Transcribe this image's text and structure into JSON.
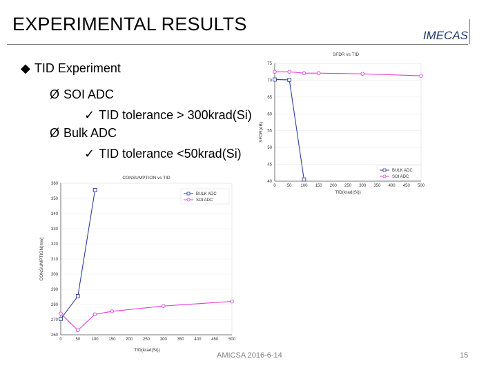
{
  "slide": {
    "title": "EXPERIMENTAL RESULTS",
    "brand": "IMECAS",
    "footer": "AMICSA 2016-6-14",
    "page": "15",
    "bullets": [
      {
        "level": 1,
        "marker": "◆",
        "text": "TID Experiment"
      },
      {
        "level": 2,
        "marker": "Ø",
        "text": "SOI ADC"
      },
      {
        "level": 3,
        "marker": "✓",
        "text": "TID tolerance > 300krad(Si)"
      },
      {
        "level": 2,
        "marker": "Ø",
        "text": "Bulk ADC"
      },
      {
        "level": 3,
        "marker": "✓",
        "text": "TID tolerance <50krad(Si)"
      }
    ]
  },
  "colors": {
    "bulk": "#2b3f9e",
    "soi": "#e040e0"
  },
  "chart_data": [
    {
      "type": "line",
      "title": "SFDR vs TID",
      "xlabel": "TID(krad(Si))",
      "ylabel": "SFDR(dB)",
      "x": [
        0,
        50,
        100,
        150,
        200,
        250,
        300,
        350,
        400,
        450,
        500
      ],
      "xlim": [
        0,
        500
      ],
      "ylim": [
        40,
        75
      ],
      "yticks": [
        40,
        45,
        50,
        55,
        60,
        65,
        70,
        75
      ],
      "legend": "bottom-right",
      "series": [
        {
          "name": "BULK ADC",
          "x": [
            0,
            50,
            100
          ],
          "values": [
            70.2,
            70.1,
            40.5
          ]
        },
        {
          "name": "SOI ADC",
          "x": [
            0,
            50,
            100,
            150,
            300,
            500
          ],
          "values": [
            72.5,
            72.5,
            72.1,
            72.1,
            71.9,
            71.3
          ]
        }
      ]
    },
    {
      "type": "line",
      "title": "CONSUMPTION vs TID",
      "xlabel": "TID(krad(Si))",
      "ylabel": "CONSUMPTION(mw)",
      "x": [
        0,
        50,
        100,
        150,
        200,
        250,
        300,
        350,
        400,
        450,
        500
      ],
      "xlim": [
        0,
        500
      ],
      "ylim": [
        260,
        360
      ],
      "yticks": [
        260,
        270,
        280,
        290,
        300,
        310,
        320,
        330,
        340,
        350,
        360
      ],
      "legend": "top-right",
      "series": [
        {
          "name": "BULK ADC",
          "x": [
            0,
            50,
            100
          ],
          "values": [
            270.5,
            285.5,
            355.5
          ]
        },
        {
          "name": "SOI ADC",
          "x": [
            0,
            50,
            100,
            150,
            300,
            500
          ],
          "values": [
            274,
            263,
            273.5,
            275.5,
            279,
            282
          ]
        }
      ]
    }
  ]
}
